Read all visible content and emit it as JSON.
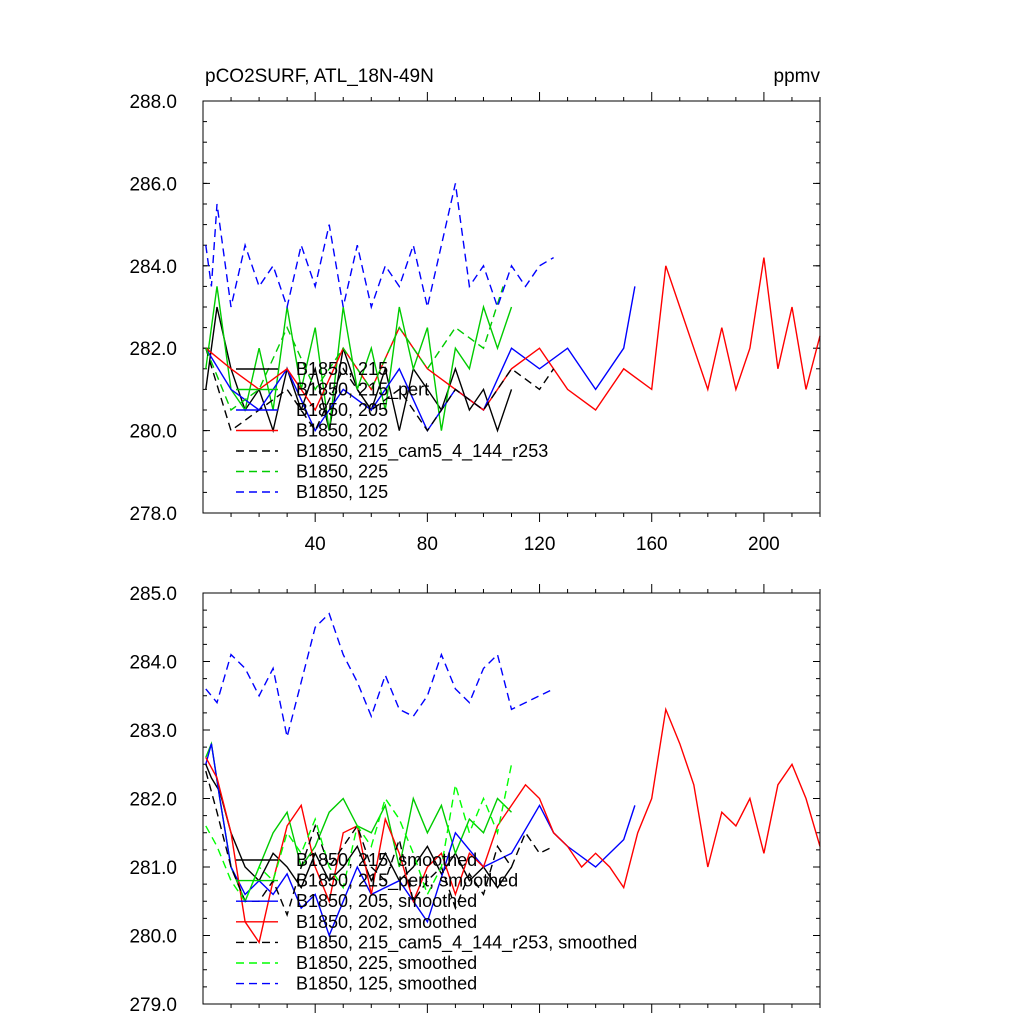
{
  "chart_data": [
    {
      "type": "line",
      "title": "pCO2SURF, ATL_18N-49N",
      "units": "ppmv",
      "ylim": [
        278.0,
        288.0
      ],
      "xlim": [
        0,
        220
      ],
      "yticks": [
        "278.0",
        "280.0",
        "282.0",
        "284.0",
        "286.0",
        "288.0"
      ],
      "xticks": [
        "40",
        "80",
        "120",
        "160",
        "200"
      ],
      "legend_position": "bottom-left",
      "series": [
        {
          "name": "B1850, 215",
          "color": "#000000",
          "dash": "solid",
          "x": [
            1,
            5,
            10,
            15,
            20,
            25,
            30,
            35,
            40,
            45,
            50,
            55,
            60,
            65,
            70,
            75,
            80,
            85,
            90,
            95,
            100,
            105,
            110
          ],
          "y": [
            281.0,
            283.0,
            281.5,
            280.5,
            281.0,
            280.0,
            281.5,
            280.5,
            281.5,
            280.0,
            282.0,
            281.0,
            280.5,
            281.5,
            280.0,
            281.5,
            281.0,
            280.5,
            281.5,
            280.5,
            281.0,
            280.0,
            281.0
          ]
        },
        {
          "name": "B1850, 215_pert",
          "color": "#00cc00",
          "dash": "solid",
          "x": [
            1,
            5,
            10,
            15,
            20,
            25,
            30,
            35,
            40,
            45,
            50,
            55,
            60,
            65,
            70,
            75,
            80,
            85,
            90,
            95,
            100,
            105,
            110
          ],
          "y": [
            281.5,
            283.5,
            281.0,
            280.5,
            282.0,
            280.5,
            283.0,
            281.0,
            282.5,
            280.0,
            283.0,
            281.0,
            282.0,
            280.5,
            283.0,
            281.5,
            282.5,
            280.0,
            282.0,
            281.5,
            283.0,
            282.0,
            283.0
          ]
        },
        {
          "name": "B1850, 205",
          "color": "#0000ff",
          "dash": "solid",
          "x": [
            1,
            10,
            20,
            30,
            40,
            50,
            60,
            70,
            80,
            90,
            100,
            110,
            120,
            130,
            140,
            150,
            154
          ],
          "y": [
            282.0,
            281.0,
            280.5,
            281.5,
            280.0,
            281.0,
            280.5,
            281.5,
            280.0,
            281.0,
            280.5,
            282.0,
            281.5,
            282.0,
            281.0,
            282.0,
            283.5
          ]
        },
        {
          "name": "B1850, 202",
          "color": "#ff0000",
          "dash": "solid",
          "x": [
            1,
            10,
            20,
            30,
            40,
            50,
            60,
            70,
            80,
            90,
            100,
            110,
            120,
            130,
            140,
            150,
            160,
            165,
            170,
            175,
            180,
            185,
            190,
            195,
            200,
            205,
            210,
            215,
            220
          ],
          "y": [
            282.0,
            281.5,
            281.0,
            281.5,
            280.5,
            282.0,
            281.0,
            282.5,
            281.5,
            281.0,
            280.5,
            281.5,
            282.0,
            281.0,
            280.5,
            281.5,
            281.0,
            284.0,
            283.0,
            282.0,
            281.0,
            282.5,
            281.0,
            282.0,
            284.2,
            281.5,
            283.0,
            281.0,
            282.3
          ]
        },
        {
          "name": "B1850, 215_cam5_4_144_r253",
          "color": "#000000",
          "dash": "dashed",
          "x": [
            1,
            10,
            20,
            30,
            40,
            50,
            60,
            70,
            80,
            90,
            100,
            110,
            120,
            125
          ],
          "y": [
            282.0,
            280.0,
            280.5,
            281.0,
            280.0,
            281.5,
            280.5,
            281.0,
            280.0,
            281.0,
            280.5,
            281.5,
            281.0,
            281.5
          ]
        },
        {
          "name": "B1850, 225",
          "color": "#00cc00",
          "dash": "dashed",
          "x": [
            1,
            10,
            20,
            30,
            40,
            50,
            60,
            70,
            80,
            90,
            100,
            107
          ],
          "y": [
            282.0,
            280.5,
            281.0,
            282.5,
            281.0,
            282.0,
            281.0,
            282.5,
            281.5,
            282.5,
            282.0,
            283.5
          ]
        },
        {
          "name": "B1850, 125",
          "color": "#0000ff",
          "dash": "dashed",
          "x": [
            1,
            3,
            5,
            10,
            15,
            20,
            25,
            30,
            35,
            40,
            45,
            50,
            55,
            60,
            65,
            70,
            75,
            80,
            85,
            90,
            95,
            100,
            105,
            110,
            115,
            120,
            125
          ],
          "y": [
            284.5,
            283.5,
            285.5,
            283.0,
            284.5,
            283.5,
            284.0,
            283.0,
            284.5,
            283.5,
            285.0,
            283.0,
            284.5,
            283.0,
            284.0,
            283.5,
            284.5,
            283.0,
            284.5,
            286.0,
            283.5,
            284.0,
            283.0,
            284.0,
            283.5,
            284.0,
            284.2
          ]
        }
      ]
    },
    {
      "type": "line",
      "title": "",
      "ylim": [
        279.0,
        285.0
      ],
      "xlim": [
        0,
        220
      ],
      "yticks": [
        "279.0",
        "280.0",
        "281.0",
        "282.0",
        "283.0",
        "284.0",
        "285.0"
      ],
      "xticks": [],
      "legend_position": "bottom-left",
      "series": [
        {
          "name": "B1850, 215, smoothed",
          "color": "#000000",
          "dash": "solid",
          "x": [
            1,
            3,
            6,
            10,
            15,
            20,
            25,
            30,
            35,
            40,
            45,
            50,
            55,
            60,
            65,
            70,
            75,
            80,
            85,
            90,
            95,
            100,
            105,
            110
          ],
          "y": [
            282.5,
            282.3,
            282.1,
            281.5,
            281.0,
            280.8,
            281.2,
            281.0,
            280.7,
            281.2,
            280.8,
            281.0,
            281.3,
            280.8,
            281.2,
            280.8,
            281.0,
            281.3,
            280.9,
            281.2,
            280.8,
            281.0,
            280.7,
            281.0
          ]
        },
        {
          "name": "B1850, 215_pert, smoothed",
          "color": "#00cc00",
          "dash": "solid",
          "x": [
            1,
            3,
            6,
            10,
            15,
            20,
            25,
            30,
            35,
            40,
            45,
            50,
            55,
            60,
            65,
            70,
            75,
            80,
            85,
            90,
            95,
            100,
            105,
            110
          ],
          "y": [
            282.6,
            282.8,
            282.0,
            281.0,
            280.5,
            281.0,
            281.5,
            281.8,
            281.0,
            281.3,
            281.8,
            282.0,
            281.6,
            281.5,
            281.9,
            281.0,
            282.0,
            281.5,
            281.9,
            281.2,
            281.7,
            281.5,
            282.0,
            281.8
          ]
        },
        {
          "name": "B1850, 205, smoothed",
          "color": "#0000ff",
          "dash": "solid",
          "x": [
            1,
            3,
            6,
            10,
            15,
            20,
            25,
            30,
            35,
            40,
            45,
            50,
            55,
            60,
            70,
            80,
            90,
            100,
            110,
            120,
            125,
            130,
            140,
            150,
            154
          ],
          "y": [
            282.5,
            282.8,
            282.0,
            281.0,
            280.6,
            280.8,
            280.6,
            280.9,
            280.4,
            280.6,
            280.0,
            280.5,
            281.0,
            280.6,
            280.8,
            280.2,
            281.5,
            281.0,
            281.2,
            281.9,
            281.5,
            281.3,
            281.0,
            281.4,
            281.9
          ]
        },
        {
          "name": "B1850, 202, smoothed",
          "color": "#ff0000",
          "dash": "solid",
          "x": [
            1,
            5,
            10,
            15,
            20,
            25,
            30,
            35,
            40,
            45,
            50,
            55,
            60,
            65,
            70,
            75,
            80,
            85,
            90,
            95,
            100,
            105,
            110,
            115,
            120,
            125,
            130,
            135,
            140,
            145,
            150,
            155,
            160,
            165,
            170,
            175,
            180,
            185,
            190,
            195,
            200,
            205,
            210,
            215,
            220
          ],
          "y": [
            282.6,
            282.3,
            281.5,
            280.2,
            279.9,
            280.8,
            281.6,
            281.9,
            281.0,
            280.5,
            281.5,
            281.6,
            280.6,
            281.7,
            281.2,
            280.5,
            281.0,
            281.2,
            280.6,
            281.2,
            281.0,
            281.6,
            281.9,
            282.2,
            282.0,
            281.5,
            281.3,
            281.0,
            281.2,
            281.0,
            280.7,
            281.5,
            282.0,
            283.3,
            282.8,
            282.2,
            281.0,
            281.8,
            281.6,
            282.0,
            281.2,
            282.2,
            282.5,
            282.0,
            281.3
          ]
        },
        {
          "name": "B1850, 215_cam5_4_144_r253, smoothed",
          "color": "#000000",
          "dash": "dashed",
          "x": [
            1,
            5,
            10,
            15,
            20,
            25,
            30,
            35,
            40,
            45,
            50,
            55,
            60,
            65,
            70,
            75,
            80,
            85,
            90,
            95,
            100,
            105,
            110,
            115,
            120,
            125
          ],
          "y": [
            282.4,
            281.8,
            281.0,
            280.5,
            280.5,
            280.8,
            280.3,
            281.0,
            281.6,
            281.0,
            281.3,
            281.6,
            281.0,
            280.8,
            281.4,
            280.5,
            280.8,
            281.0,
            280.4,
            280.9,
            280.6,
            281.3,
            281.0,
            281.5,
            281.2,
            281.3
          ]
        },
        {
          "name": "B1850, 225, smoothed",
          "color": "#00ff00",
          "dash": "dashed",
          "x": [
            1,
            5,
            10,
            15,
            20,
            25,
            30,
            35,
            40,
            45,
            50,
            55,
            60,
            65,
            70,
            75,
            80,
            85,
            90,
            95,
            100,
            105,
            110
          ],
          "y": [
            281.6,
            281.3,
            280.8,
            280.5,
            281.0,
            280.8,
            281.5,
            281.2,
            281.7,
            281.0,
            280.7,
            281.6,
            281.3,
            282.0,
            281.7,
            281.2,
            280.6,
            281.0,
            282.2,
            281.5,
            282.0,
            281.5,
            282.5
          ]
        },
        {
          "name": "B1850, 125, smoothed",
          "color": "#0000ff",
          "dash": "dashed",
          "x": [
            1,
            5,
            10,
            15,
            20,
            25,
            30,
            35,
            40,
            45,
            50,
            55,
            60,
            65,
            70,
            75,
            80,
            85,
            90,
            95,
            100,
            105,
            110,
            115,
            120,
            125
          ],
          "y": [
            283.6,
            283.4,
            284.1,
            283.9,
            283.5,
            283.9,
            282.9,
            283.7,
            284.5,
            284.7,
            284.1,
            283.7,
            283.2,
            283.8,
            283.3,
            283.2,
            283.5,
            284.1,
            283.6,
            283.4,
            283.9,
            284.1,
            283.3,
            283.4,
            283.5,
            283.6
          ]
        }
      ]
    }
  ]
}
